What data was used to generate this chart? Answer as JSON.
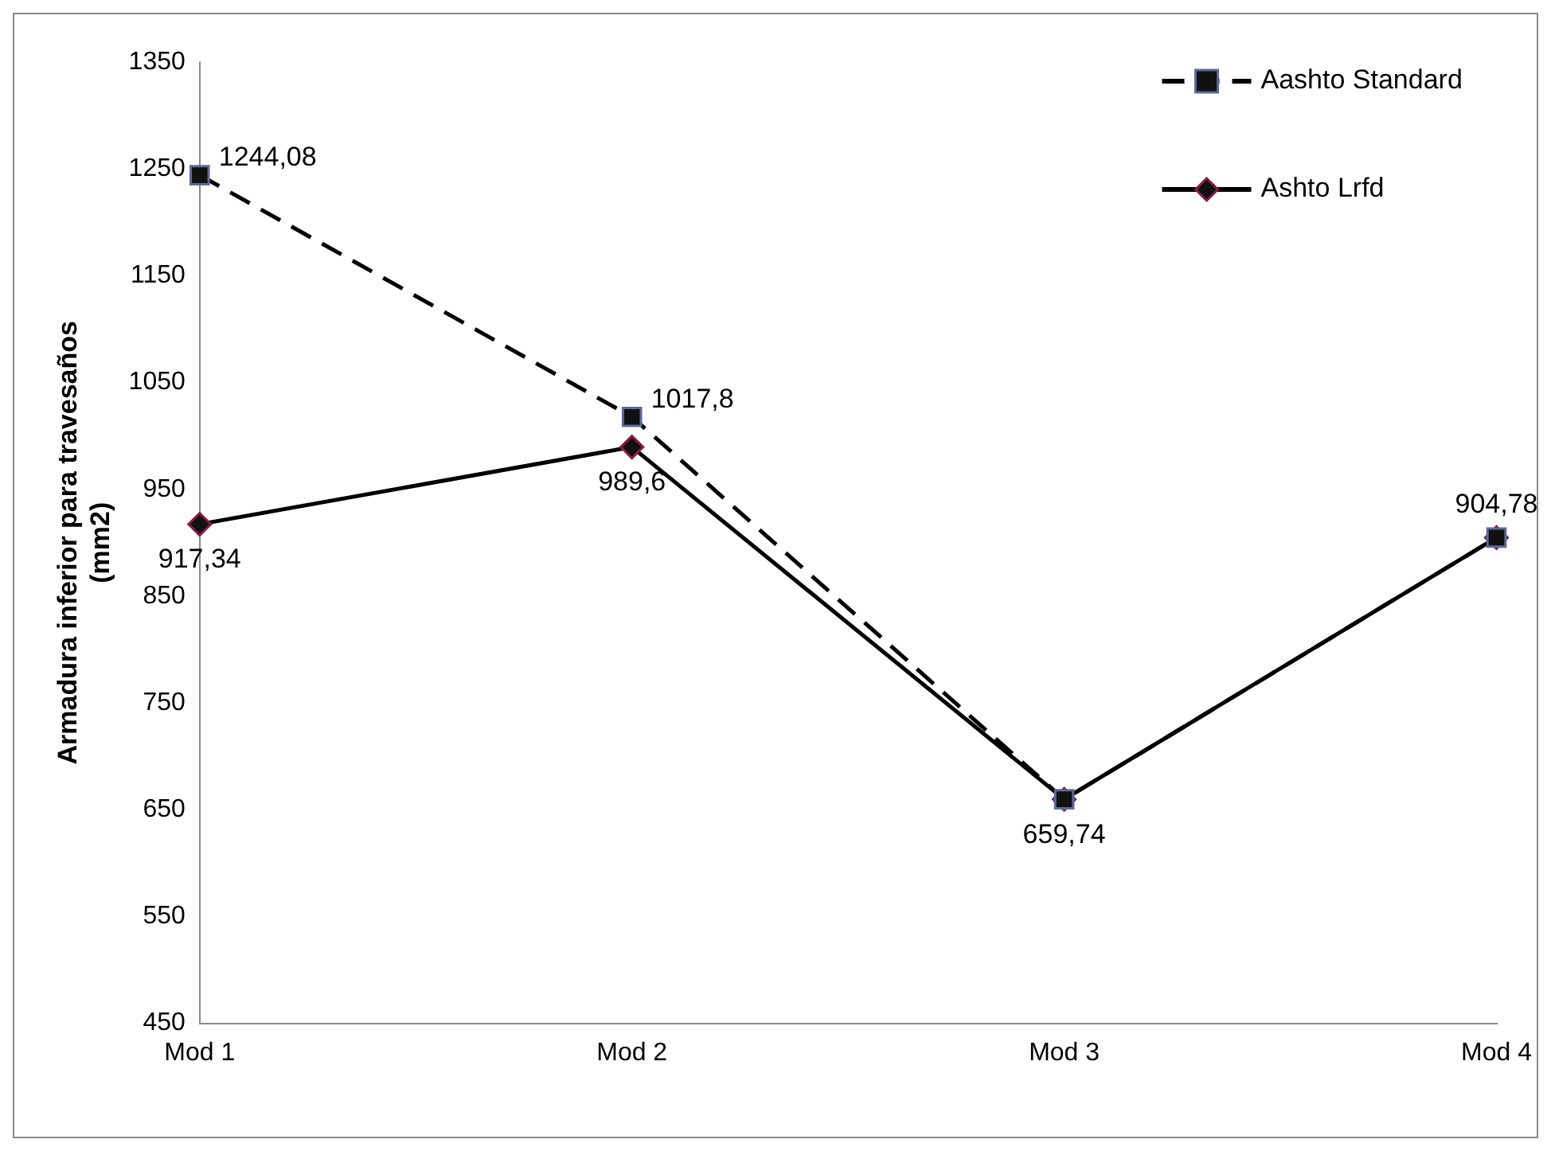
{
  "chart_data": {
    "type": "line",
    "ylabel": "Armadura inferior para travesaños (mm2)",
    "categories": [
      "Mod 1",
      "Mod 2",
      "Mod 3",
      "Mod 4"
    ],
    "series": [
      {
        "name": "Aashto Standard",
        "color": "#000000",
        "values": [
          1244.08,
          1017.8,
          659.74,
          904.78
        ],
        "marker": "square",
        "line_style": "dashed",
        "value_labels": [
          "1244,08",
          "1017,8",
          "659,74",
          "904,78"
        ]
      },
      {
        "name": "Ashto Lrfd",
        "color": "#000000",
        "values": [
          917.34,
          989.6,
          659.74,
          904.78
        ],
        "marker": "diamond",
        "line_style": "solid",
        "value_labels": [
          "917,34",
          "989,6",
          null,
          null
        ]
      }
    ],
    "ylim": [
      450,
      1350
    ],
    "yticks": [
      450,
      550,
      650,
      750,
      850,
      950,
      1050,
      1150,
      1250,
      1350
    ],
    "grid": false,
    "legend": "top right"
  }
}
